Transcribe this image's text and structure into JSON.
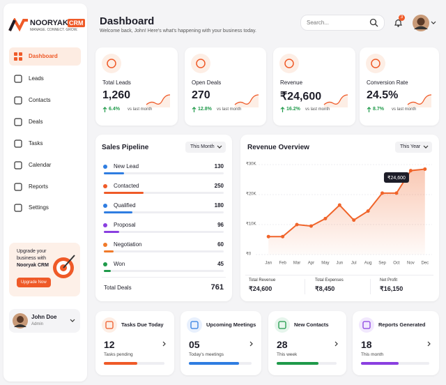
{
  "brand": {
    "name": "NOORYAK",
    "badge": "CRM",
    "tagline": "MANAGE. CONNECT. GROW."
  },
  "nav": [
    "Dashboard",
    "Leads",
    "Contacts",
    "Deals",
    "Tasks",
    "Calendar",
    "Reports",
    "Settings"
  ],
  "promo": {
    "text": "Upgrade your business with",
    "highlight": "Nooryak CRM",
    "button": "Upgrade Now"
  },
  "user": {
    "name": "John Doe",
    "role": "Admin"
  },
  "header": {
    "title": "Dashboard",
    "subtitle": "Welcome back, John! Here's what's happening with your business today.",
    "search_placeholder": "Search...",
    "notification_count": "3"
  },
  "kpis": [
    {
      "label": "Total Leads",
      "value": "1,260",
      "change": "6.4%",
      "note": "vs last month"
    },
    {
      "label": "Open Deals",
      "value": "270",
      "change": "12.8%",
      "note": "vs last month"
    },
    {
      "label": "Revenue",
      "value": "₹24,600",
      "change": "16.2%",
      "note": "vs last month"
    },
    {
      "label": "Conversion Rate",
      "value": "24.5%",
      "change": "8.7%",
      "note": "vs last month"
    }
  ],
  "pipeline": {
    "title": "Sales Pipeline",
    "filter": "This Month",
    "stages": [
      {
        "name": "New Lead",
        "value": 130,
        "color": "#2f7de1"
      },
      {
        "name": "Contacted",
        "value": 250,
        "color": "#ef5a28"
      },
      {
        "name": "Qualified",
        "value": 180,
        "color": "#2f7de1"
      },
      {
        "name": "Proposal",
        "value": 96,
        "color": "#8a3fe0"
      },
      {
        "name": "Negotiation",
        "value": 60,
        "color": "#f07a2a"
      },
      {
        "name": "Won",
        "value": 45,
        "color": "#1f9a4a"
      }
    ],
    "total_label": "Total Deals",
    "total": 761
  },
  "chart_data": {
    "type": "line",
    "title": "Revenue Overview",
    "filter": "This Year",
    "x": [
      "Jan",
      "Feb",
      "Mar",
      "Apr",
      "May",
      "Jun",
      "Jul",
      "Aug",
      "Sep",
      "Oct",
      "Nov",
      "Dec"
    ],
    "series": [
      {
        "name": "Revenue",
        "color": "#f0642a",
        "values": [
          6000,
          6000,
          10000,
          9500,
          12000,
          16500,
          11500,
          14500,
          20500,
          20500,
          28000,
          28500
        ]
      }
    ],
    "ylim": [
      0,
      30000
    ],
    "yticks": [
      {
        "value": 0,
        "label": "₹0"
      },
      {
        "value": 10000,
        "label": "₹10K"
      },
      {
        "value": 20000,
        "label": "₹20K"
      },
      {
        "value": 30000,
        "label": "₹30K"
      }
    ],
    "grid": true,
    "annotation": "₹24,600"
  },
  "revenue_summary": [
    {
      "label": "Total Revenue",
      "value": "₹24,600"
    },
    {
      "label": "Total Expenses",
      "value": "₹8,450"
    },
    {
      "label": "Net Profit",
      "value": "₹16,150"
    }
  ],
  "tasks": [
    {
      "title": "Tasks Due Today",
      "value": "12",
      "note": "Tasks pending"
    },
    {
      "title": "Upcoming Meetings",
      "value": "05",
      "note": "Today's meetings"
    },
    {
      "title": "New Contacts",
      "value": "28",
      "note": "This week"
    },
    {
      "title": "Reports Generated",
      "value": "18",
      "note": "This month"
    }
  ]
}
